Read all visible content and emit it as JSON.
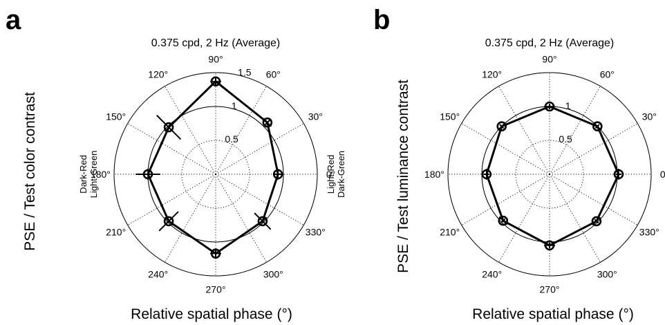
{
  "chart_data": [
    {
      "type": "polar",
      "panel": "a",
      "title": "0.375 cpd, 2 Hz (Average)",
      "ylabel": "PSE / Test color contrast",
      "xlabel": "Relative spatial phase (°)",
      "side_left": [
        "Dark-Red",
        "Light-Green"
      ],
      "side_right": [
        "Light-Red",
        "Dark-Green"
      ],
      "rmax": 1.5,
      "rticks": [
        {
          "value": 0.5,
          "label": "0.5"
        },
        {
          "value": 1,
          "label": "1"
        },
        {
          "value": 1.5,
          "label": "1.5"
        }
      ],
      "reference_circle": 1,
      "angle_labels": [
        "0°",
        "30°",
        "60°",
        "90°",
        "120°",
        "150°",
        "180°",
        "210°",
        "240°",
        "270°",
        "300°",
        "330°"
      ],
      "series": [
        {
          "points": [
            {
              "theta": 0,
              "r": 0.92,
              "err": 0.06
            },
            {
              "theta": 45,
              "r": 1.08,
              "err": 0.06
            },
            {
              "theta": 90,
              "r": 1.37,
              "err": 0.07
            },
            {
              "theta": 135,
              "r": 0.98,
              "err": 0.25
            },
            {
              "theta": 180,
              "r": 1.0,
              "err": 0.18
            },
            {
              "theta": 225,
              "r": 0.98,
              "err": 0.2
            },
            {
              "theta": 270,
              "r": 1.17,
              "err": 0.06
            },
            {
              "theta": 315,
              "r": 0.98,
              "err": 0.17
            }
          ]
        }
      ]
    },
    {
      "type": "polar",
      "panel": "b",
      "title": "0.375 cpd, 2 Hz (Average)",
      "ylabel": "PSE / Test luminance contrast",
      "xlabel": "Relative spatial phase (°)",
      "rmax": 1.5,
      "rticks": [
        {
          "value": 0.5,
          "label": "0.5"
        },
        {
          "value": 1,
          "label": "1"
        }
      ],
      "reference_circle": 1,
      "angle_labels": [
        "0°",
        "30°",
        "60°",
        "90°",
        "120°",
        "150°",
        "180°",
        "210°",
        "240°",
        "270°",
        "300°",
        "330°"
      ],
      "series": [
        {
          "points": [
            {
              "theta": 0,
              "r": 1.02,
              "err": 0.04
            },
            {
              "theta": 45,
              "r": 1.0,
              "err": 0.04
            },
            {
              "theta": 90,
              "r": 1.0,
              "err": 0.04
            },
            {
              "theta": 135,
              "r": 1.0,
              "err": 0.04
            },
            {
              "theta": 180,
              "r": 0.93,
              "err": 0.04
            },
            {
              "theta": 225,
              "r": 0.97,
              "err": 0.04
            },
            {
              "theta": 270,
              "r": 1.05,
              "err": 0.04
            },
            {
              "theta": 315,
              "r": 0.98,
              "err": 0.04
            }
          ]
        }
      ]
    }
  ]
}
